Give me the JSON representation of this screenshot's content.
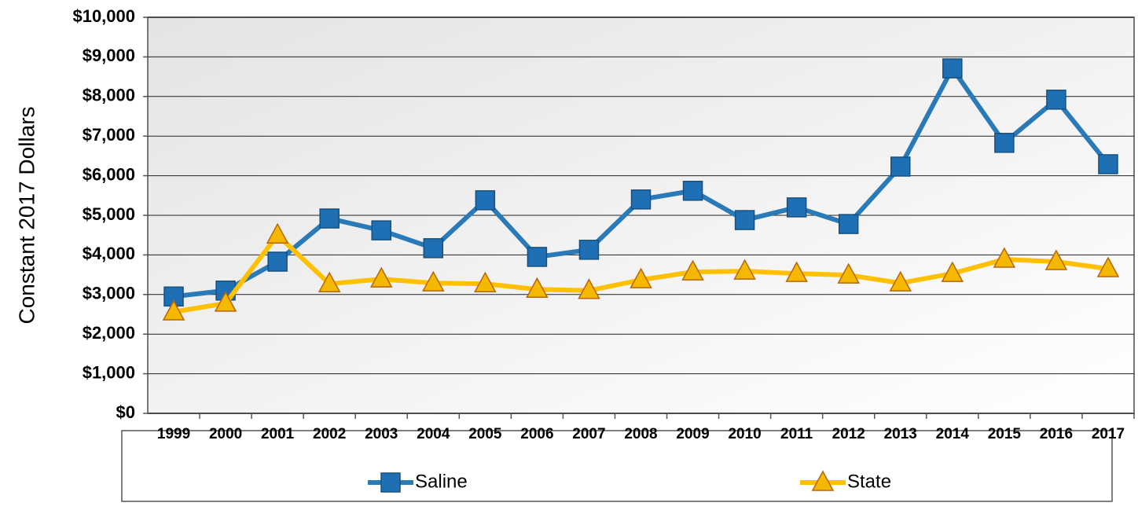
{
  "chart_data": {
    "type": "line",
    "y_label": "Constant 2017 Dollars",
    "categories": [
      "1999",
      "2000",
      "2001",
      "2002",
      "2003",
      "2004",
      "2005",
      "2006",
      "2007",
      "2008",
      "2009",
      "2010",
      "2011",
      "2012",
      "2013",
      "2014",
      "2015",
      "2016",
      "2017"
    ],
    "series": [
      {
        "name": "Saline",
        "color": "#2a7ab8",
        "marker": "square",
        "values": [
          2950,
          3100,
          3830,
          4920,
          4620,
          4170,
          5380,
          3950,
          4130,
          5400,
          5620,
          4880,
          5200,
          4780,
          6230,
          8710,
          6830,
          7920,
          6290
        ]
      },
      {
        "name": "State",
        "color": "#ffc000",
        "marker": "triangle",
        "values": [
          2560,
          2780,
          4500,
          3270,
          3390,
          3290,
          3270,
          3130,
          3100,
          3370,
          3570,
          3590,
          3530,
          3490,
          3290,
          3530,
          3890,
          3830,
          3650
        ]
      }
    ],
    "ylim": [
      0,
      10000
    ],
    "yticks": [
      {
        "value": 0,
        "label": "$0"
      },
      {
        "value": 1000,
        "label": "$1,000"
      },
      {
        "value": 2000,
        "label": "$2,000"
      },
      {
        "value": 3000,
        "label": "$3,000"
      },
      {
        "value": 4000,
        "label": "$4,000"
      },
      {
        "value": 5000,
        "label": "$5,000"
      },
      {
        "value": 6000,
        "label": "$6,000"
      },
      {
        "value": 7000,
        "label": "$7,000"
      },
      {
        "value": 8000,
        "label": "$8,000"
      },
      {
        "value": 9000,
        "label": "$9,000"
      },
      {
        "value": 10000,
        "label": "$10,000"
      }
    ],
    "grid": true,
    "legend": "bottom"
  }
}
